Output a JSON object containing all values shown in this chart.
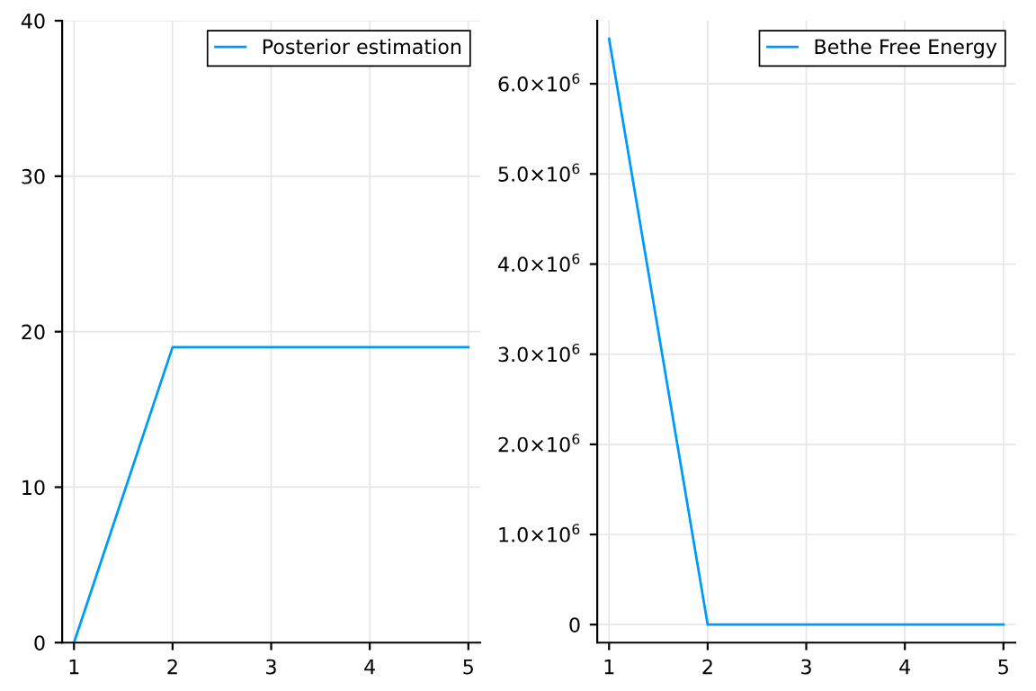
{
  "chart_data": [
    {
      "type": "line",
      "x": [
        1,
        2,
        3,
        4,
        5
      ],
      "series": [
        {
          "name": "Posterior estimation",
          "color": "#009af9",
          "values": [
            0,
            19,
            19,
            19,
            19
          ]
        }
      ],
      "xlim": [
        0.88,
        5.12
      ],
      "xticks": [
        1,
        2,
        3,
        4,
        5
      ],
      "ylim": [
        0,
        40
      ],
      "yticks": [
        0,
        10,
        20,
        30,
        40
      ],
      "grid": true,
      "legend": "top right"
    },
    {
      "type": "line",
      "x": [
        1,
        2,
        3,
        4,
        5
      ],
      "series": [
        {
          "name": "Bethe Free Energy",
          "color": "#009af9",
          "values": [
            6500000,
            0,
            0,
            0,
            0
          ]
        }
      ],
      "xlim": [
        0.88,
        5.12
      ],
      "xticks": [
        1,
        2,
        3,
        4,
        5
      ],
      "ylim": [
        -200000,
        6700000
      ],
      "yticks": [
        0,
        {
          "value": 1000000,
          "label": "1.0×10$^{6}$"
        },
        {
          "value": 2000000,
          "label": "2.0×10$^{6}$"
        },
        {
          "value": 3000000,
          "label": "3.0×10$^{6}$"
        },
        {
          "value": 4000000,
          "label": "4.0×10$^{6}$"
        },
        {
          "value": 5000000,
          "label": "5.0×10$^{6}$"
        },
        {
          "value": 6000000,
          "label": "6.0×10$^{6}$"
        }
      ],
      "grid": true,
      "legend": "top right"
    }
  ]
}
